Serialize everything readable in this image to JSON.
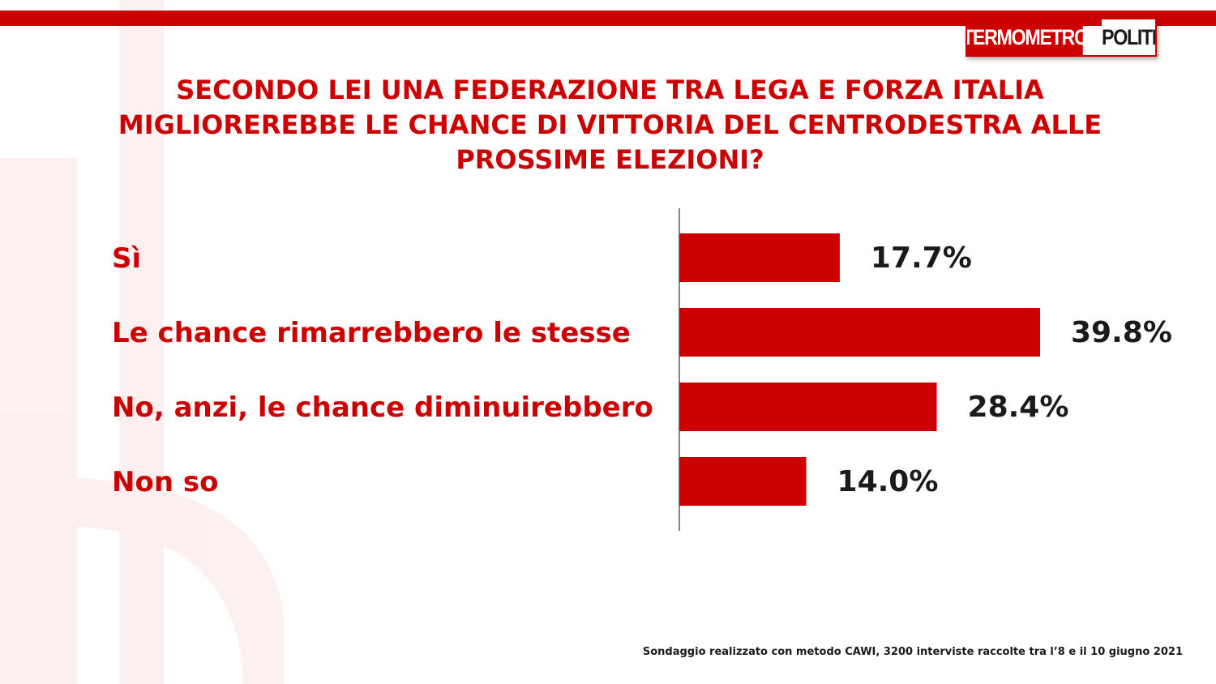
{
  "brand": {
    "left": "TERMOMETRO",
    "right": "POLITICO",
    "accent_color": "#cc0000"
  },
  "title": "SECONDO LEI UNA FEDERAZIONE TRA LEGA E FORZA ITALIA MIGLIOREREBBE LE CHANCE DI VITTORIA DEL CENTRODESTRA ALLE PROSSIME ELEZIONI?",
  "footnote": "Sondaggio realizzato con metodo CAWI, 3200 interviste raccolte tra l’8  e il 10 giugno 2021",
  "chart_data": {
    "type": "bar",
    "orientation": "horizontal",
    "categories": [
      "Sì",
      "Le chance rimarrebbero le stesse",
      "No, anzi, le chance diminuirebbero",
      "Non so"
    ],
    "values": [
      17.7,
      39.8,
      28.4,
      14.0
    ],
    "value_labels": [
      "17.7%",
      "39.8%",
      "28.4%",
      "14.0%"
    ],
    "xlim": [
      0,
      40
    ],
    "bar_color": "#cc0000",
    "label_color": "#cc0000",
    "grid": false,
    "legend": "none"
  }
}
